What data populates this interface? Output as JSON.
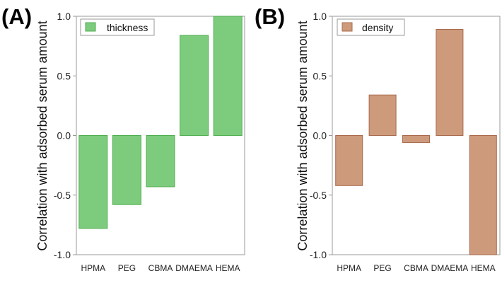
{
  "chart_data": [
    {
      "type": "bar",
      "panel_label": "(A)",
      "title": "",
      "xlabel": "",
      "ylabel": "Correlation with adsorbed serum amount",
      "categories": [
        "HPMA",
        "PEG",
        "CBMA",
        "DMAEMA",
        "HEMA"
      ],
      "series": [
        {
          "name": "thickness",
          "values": [
            -0.78,
            -0.58,
            -0.43,
            0.84,
            1.0
          ]
        }
      ],
      "ylim": [
        -1.0,
        1.0
      ],
      "yticks": [
        "-1.0",
        "-0.5",
        "0.0",
        "0.5",
        "1.0"
      ],
      "colors": {
        "fill": "#7dcb7d",
        "stroke": "#4fae4f"
      },
      "grid": false,
      "legend": "top-left"
    },
    {
      "type": "bar",
      "panel_label": "(B)",
      "title": "",
      "xlabel": "",
      "ylabel": "Correlation with adsorbed serum amount",
      "categories": [
        "HPMA",
        "PEG",
        "CBMA",
        "DMAEMA",
        "HEMA"
      ],
      "series": [
        {
          "name": "density",
          "values": [
            -0.42,
            0.34,
            -0.06,
            0.89,
            -1.0
          ]
        }
      ],
      "ylim": [
        -1.0,
        1.0
      ],
      "yticks": [
        "-1.0",
        "-0.5",
        "0.0",
        "0.5",
        "1.0"
      ],
      "colors": {
        "fill": "#cd9a7c",
        "stroke": "#a8694a"
      },
      "grid": false,
      "legend": "top-left"
    }
  ]
}
